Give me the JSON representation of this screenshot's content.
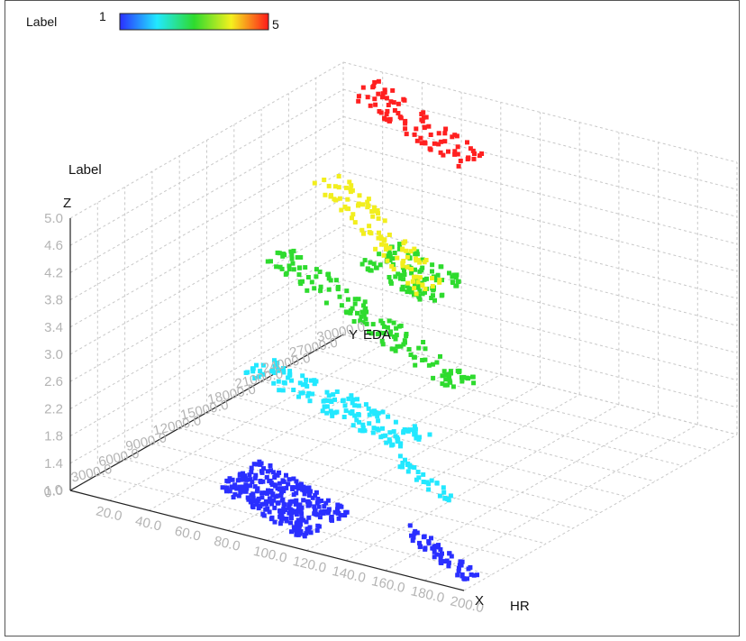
{
  "colors": {
    "grid": "#c8c8c8",
    "axis": "#222222",
    "tick_text": "#b4b4b4",
    "colormap": [
      "#2a2fff",
      "#22e8ff",
      "#2edb2e",
      "#f4f01e",
      "#ff1a1a"
    ]
  },
  "chart_data": {
    "type": "scatter",
    "subtype": "3d-scatter",
    "x_axis": {
      "letter": "X",
      "name": "HR",
      "range": [
        0,
        200
      ],
      "ticks": [
        "0.0",
        "20.0",
        "40.0",
        "60.0",
        "80.0",
        "100.0",
        "120.0",
        "140.0",
        "160.0",
        "180.0",
        "200.0"
      ]
    },
    "y_axis": {
      "letter": "Y",
      "name": "EDA",
      "range": [
        0,
        30000
      ],
      "ticks": [
        "0.0",
        "3000.0",
        "6000.0",
        "9000.0",
        "12000.0",
        "15000.0",
        "18000.0",
        "21000.0",
        "24000.0",
        "27000.0",
        "30000.0"
      ]
    },
    "z_axis": {
      "letter": "Z",
      "name": "Label",
      "range": [
        1.0,
        5.0
      ],
      "ticks": [
        "1.0",
        "1.4",
        "1.8",
        "2.2",
        "2.6",
        "3.0",
        "3.4",
        "3.8",
        "4.2",
        "4.6",
        "5.0"
      ]
    },
    "colorbar": {
      "title": "Label",
      "min_label": "1",
      "max_label": "5",
      "range": [
        1,
        5
      ]
    },
    "grid": true,
    "series": [
      {
        "z": 5,
        "color": "#ff2020",
        "segments": [
          {
            "x": [
              20,
              108
            ],
            "y": [
              27500,
              21000
            ],
            "width": 3000,
            "n": 90
          }
        ]
      },
      {
        "z": 4,
        "color": "#f2ee1e",
        "segments": [
          {
            "x": [
              22,
              128
            ],
            "y": [
              23500,
              12000
            ],
            "width": 3000,
            "n": 100
          }
        ]
      },
      {
        "z": 3,
        "color": "#2edb2e",
        "segments": [
          {
            "x": [
              10,
              160
            ],
            "y": [
              20500,
              9000
            ],
            "width": 2800,
            "n": 150
          },
          {
            "x": [
              45,
              95
            ],
            "y": [
              24000,
              21000
            ],
            "width": 4500,
            "n": 110
          }
        ]
      },
      {
        "z": 2,
        "color": "#22e8ff",
        "segments": [
          {
            "x": [
              30,
              135
            ],
            "y": [
              14000,
              9000
            ],
            "width": 3200,
            "n": 150
          },
          {
            "x": [
              135,
              182
            ],
            "y": [
              6500,
              2500
            ],
            "width": 1200,
            "n": 30
          }
        ]
      },
      {
        "z": 1,
        "color": "#2a2fff",
        "segments": [
          {
            "x": [
              48,
              112
            ],
            "y": [
              8000,
              4000
            ],
            "width": 5200,
            "n": 300
          },
          {
            "x": [
              140,
              195
            ],
            "y": [
              6500,
              2000
            ],
            "width": 1500,
            "n": 60
          }
        ]
      }
    ]
  }
}
